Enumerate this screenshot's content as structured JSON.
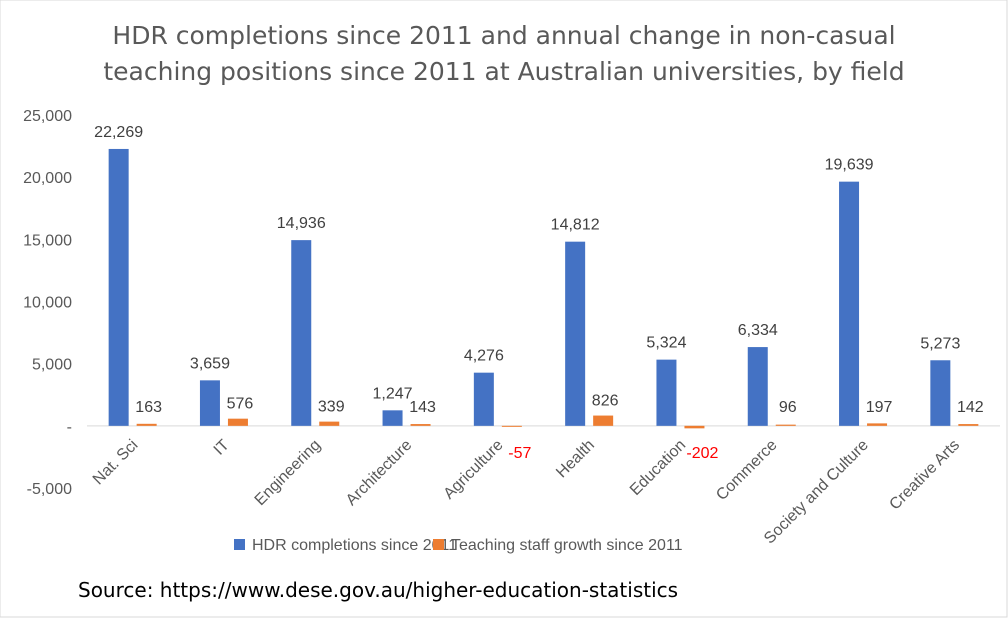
{
  "chart_data": {
    "type": "bar",
    "title_lines": [
      "HDR completions since 2011 and annual change in non-casual",
      "teaching positions since 2011 at Australian universities, by field"
    ],
    "categories": [
      "Nat. Sci",
      "IT",
      "Engineering",
      "Architecture",
      "Agriculture",
      "Health",
      "Education",
      "Commerce",
      "Society and Culture",
      "Creative Arts"
    ],
    "series": [
      {
        "name": "HDR completions since 2011",
        "color": "#4472C4",
        "values": [
          22269,
          3659,
          14936,
          1247,
          4276,
          14812,
          5324,
          6334,
          19639,
          5273
        ],
        "labels": [
          "22,269",
          "3,659",
          "14,936",
          "1,247",
          "4,276",
          "14,812",
          "5,324",
          "6,334",
          "19,639",
          "5,273"
        ]
      },
      {
        "name": "Teaching staff growth since 2011",
        "color": "#ED7D31",
        "values": [
          163,
          576,
          339,
          143,
          -57,
          826,
          -202,
          96,
          197,
          142
        ],
        "labels": [
          "163",
          "576",
          "339",
          "143",
          "-57",
          "826",
          "-202",
          "96",
          "197",
          "142"
        ]
      }
    ],
    "negative_label_color": "#FF0000",
    "ylim": [
      -5000,
      25000
    ],
    "yticks": [
      25000,
      20000,
      15000,
      10000,
      5000,
      0,
      -5000
    ],
    "ytick_labels": [
      "25,000",
      "20,000",
      "15,000",
      "10,000",
      "5,000",
      "-",
      "-5,000"
    ],
    "grid": false,
    "legend_position": "bottom"
  },
  "source": "Source: https://www.dese.gov.au/higher-education-statistics"
}
